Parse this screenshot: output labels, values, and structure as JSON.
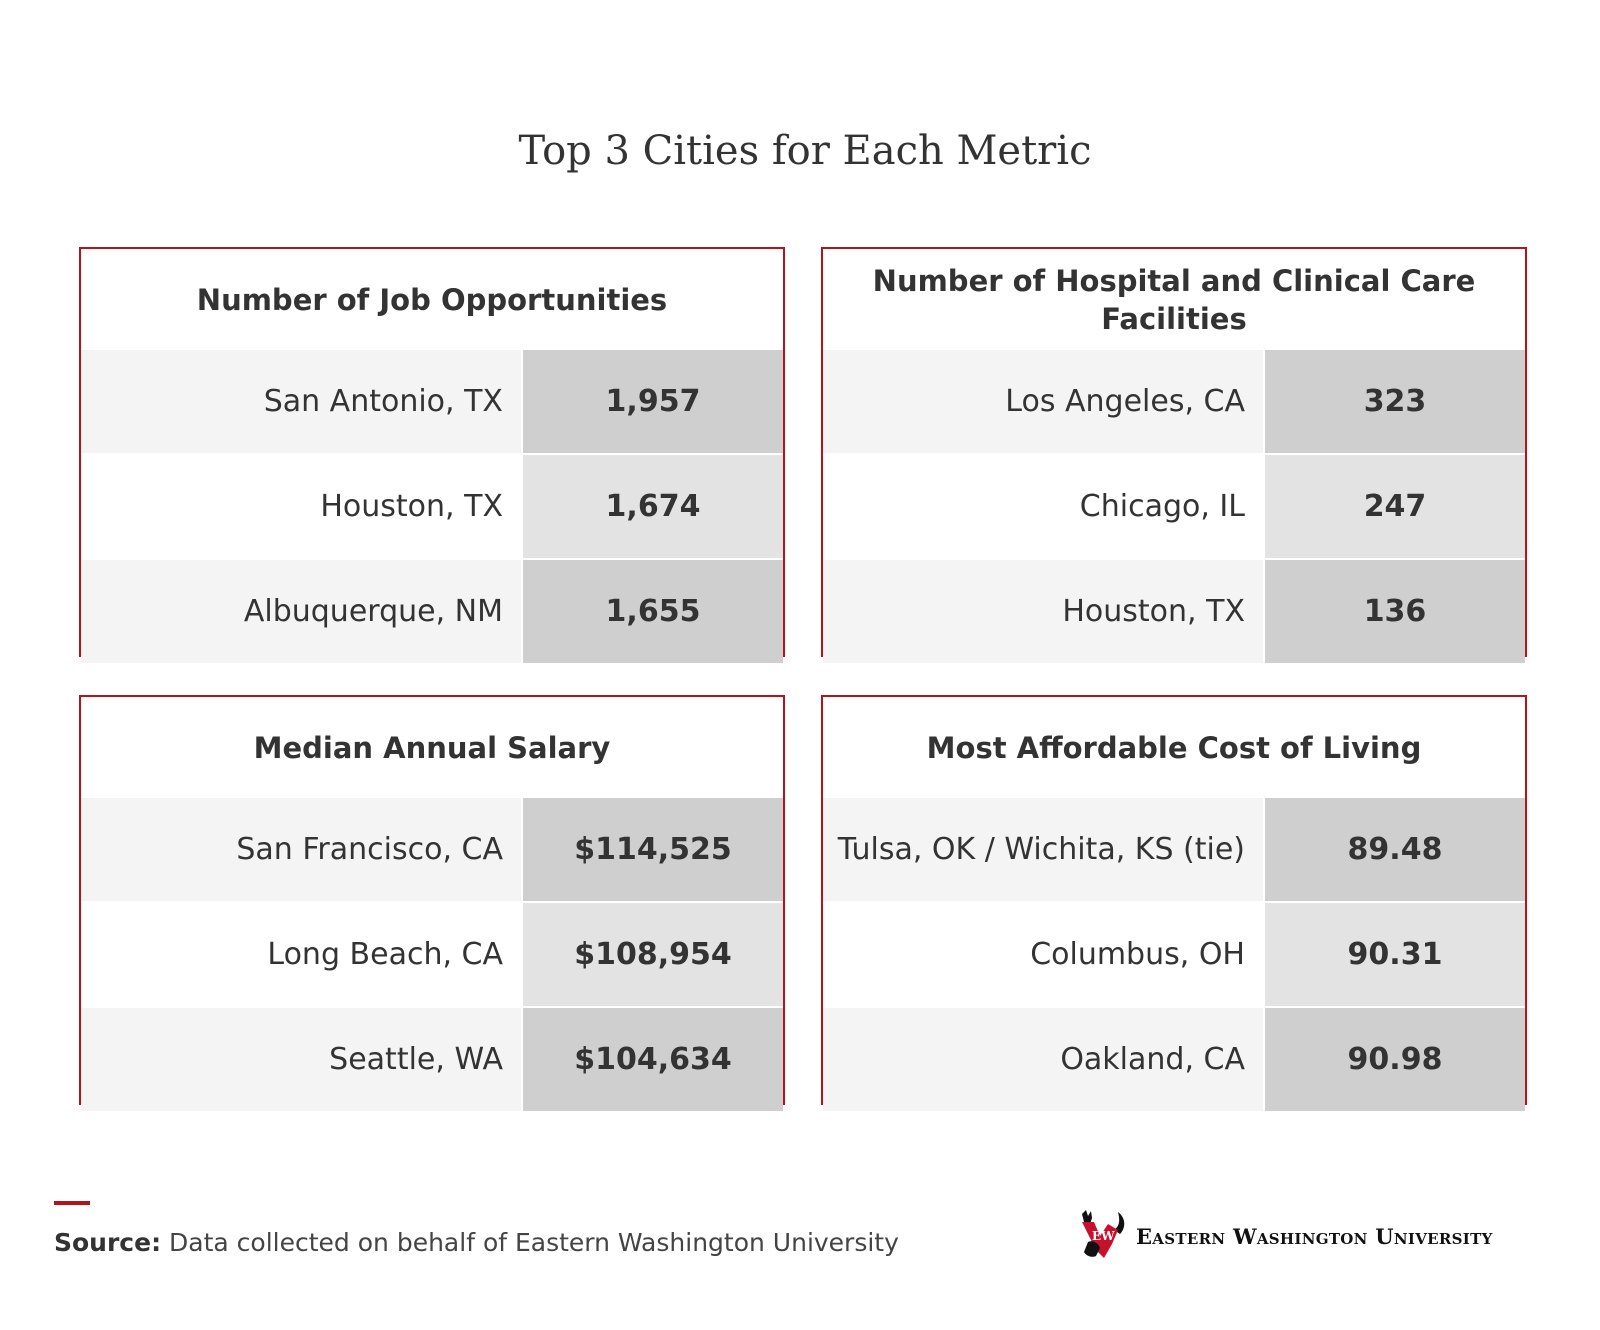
{
  "title": "Top 3 Cities for Each Metric",
  "cards": [
    {
      "heading": "Number of Job Opportunities",
      "rows": [
        {
          "city": "San Antonio, TX",
          "value": "1,957"
        },
        {
          "city": "Houston, TX",
          "value": "1,674"
        },
        {
          "city": "Albuquerque, NM",
          "value": "1,655"
        }
      ]
    },
    {
      "heading": "Number of Hospital and Clinical Care Facilities",
      "rows": [
        {
          "city": "Los Angeles, CA",
          "value": "323"
        },
        {
          "city": "Chicago, IL",
          "value": "247"
        },
        {
          "city": "Houston, TX",
          "value": "136"
        }
      ]
    },
    {
      "heading": "Median Annual Salary",
      "rows": [
        {
          "city": "San Francisco, CA",
          "value": "$114,525"
        },
        {
          "city": "Long Beach, CA",
          "value": "$108,954"
        },
        {
          "city": "Seattle, WA",
          "value": "$104,634"
        }
      ]
    },
    {
      "heading": "Most Affordable Cost of Living",
      "rows": [
        {
          "city": "Tulsa, OK / Wichita, KS (tie)",
          "value": "89.48"
        },
        {
          "city": "Columbus, OH",
          "value": "90.31"
        },
        {
          "city": "Oakland, CA",
          "value": "90.98"
        }
      ]
    }
  ],
  "footer": {
    "source_label": "Source:",
    "source_text": "Data collected on behalf of Eastern Washington University",
    "logo_text": "Eastern Washington University",
    "accent_color": "#b5121b"
  }
}
